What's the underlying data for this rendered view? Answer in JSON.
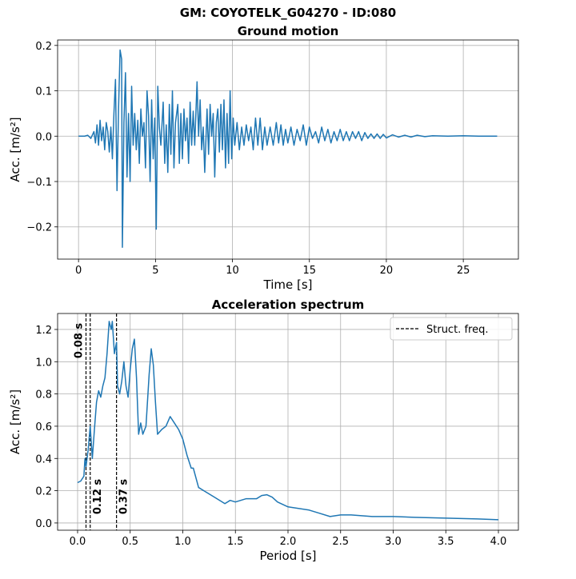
{
  "title": "GM: COYOTELK_G04270 - ID:080",
  "chart_data": [
    {
      "type": "line",
      "title": "Ground motion",
      "xlabel": "Time [s]",
      "ylabel": "Acc. [m/s²]",
      "color": "#1f77b4",
      "grid": true,
      "xlim": [
        -1.36,
        28.58
      ],
      "ylim": [
        -0.271,
        0.212
      ],
      "xticks": [
        0,
        5,
        10,
        15,
        20,
        25
      ],
      "yticks": [
        {
          "value": -0.2,
          "label": "−0.2"
        },
        {
          "value": -0.1,
          "label": "−0.1"
        },
        {
          "value": 0,
          "label": "0.0"
        },
        0.1,
        0.2
      ],
      "x": [
        0,
        0.4,
        0.6,
        0.8,
        1.0,
        1.1,
        1.2,
        1.3,
        1.4,
        1.5,
        1.6,
        1.7,
        1.8,
        1.9,
        2.0,
        2.1,
        2.2,
        2.3,
        2.4,
        2.5,
        2.6,
        2.7,
        2.8,
        2.85,
        2.95,
        3.05,
        3.15,
        3.25,
        3.35,
        3.45,
        3.55,
        3.65,
        3.75,
        3.85,
        3.95,
        4.05,
        4.15,
        4.25,
        4.35,
        4.45,
        4.55,
        4.65,
        4.75,
        4.85,
        4.95,
        5.05,
        5.15,
        5.25,
        5.35,
        5.5,
        5.6,
        5.7,
        5.8,
        5.9,
        6.0,
        6.1,
        6.2,
        6.3,
        6.45,
        6.55,
        6.65,
        6.75,
        6.85,
        6.95,
        7.05,
        7.15,
        7.25,
        7.35,
        7.45,
        7.55,
        7.7,
        7.8,
        7.9,
        8.0,
        8.1,
        8.2,
        8.35,
        8.45,
        8.55,
        8.65,
        8.75,
        8.85,
        8.95,
        9.05,
        9.15,
        9.25,
        9.35,
        9.45,
        9.55,
        9.65,
        9.75,
        9.85,
        9.95,
        10.05,
        10.15,
        10.3,
        10.45,
        10.6,
        10.75,
        10.9,
        11.05,
        11.2,
        11.35,
        11.5,
        11.65,
        11.8,
        11.95,
        12.1,
        12.25,
        12.45,
        12.65,
        12.85,
        13.0,
        13.15,
        13.3,
        13.45,
        13.6,
        13.8,
        14.0,
        14.2,
        14.4,
        14.6,
        14.8,
        15.0,
        15.2,
        15.4,
        15.6,
        15.8,
        16.0,
        16.2,
        16.4,
        16.6,
        16.8,
        17.0,
        17.2,
        17.4,
        17.6,
        17.8,
        18.0,
        18.2,
        18.4,
        18.6,
        18.8,
        19.0,
        19.2,
        19.4,
        19.6,
        19.8,
        20.0,
        20.4,
        20.8,
        21.2,
        21.6,
        22.0,
        22.5,
        23.0,
        24.0,
        25.0,
        26.0,
        27.2
      ],
      "values": [
        0,
        0,
        0.002,
        -0.005,
        0.01,
        -0.015,
        0.025,
        -0.02,
        0.035,
        -0.01,
        0.02,
        -0.03,
        0.03,
        0.01,
        -0.035,
        0.02,
        -0.05,
        0.05,
        0.125,
        -0.12,
        0.06,
        0.19,
        0.17,
        -0.245,
        0.03,
        0.14,
        -0.09,
        0.05,
        -0.1,
        0.11,
        -0.02,
        0.05,
        -0.03,
        0.035,
        -0.06,
        0.06,
        0.0,
        0.03,
        -0.07,
        0.1,
        0.045,
        -0.1,
        0.08,
        -0.05,
        0.04,
        -0.205,
        0.11,
        0.02,
        -0.02,
        0.075,
        -0.06,
        0.025,
        -0.08,
        0.07,
        -0.04,
        0.1,
        -0.07,
        0.03,
        0.07,
        -0.06,
        0.05,
        -0.05,
        0.06,
        -0.01,
        0.04,
        -0.06,
        0.075,
        -0.02,
        0.055,
        -0.02,
        0.12,
        0.0,
        0.08,
        -0.03,
        0.02,
        -0.08,
        0.06,
        -0.04,
        0.07,
        0.0,
        0.05,
        -0.09,
        0.03,
        0.06,
        -0.035,
        0.07,
        -0.03,
        0.08,
        -0.07,
        0.05,
        -0.06,
        0.1,
        -0.05,
        0.04,
        -0.02,
        0.03,
        -0.03,
        0.02,
        -0.02,
        0.025,
        -0.01,
        0.02,
        -0.03,
        0.04,
        -0.02,
        0.04,
        -0.03,
        0.02,
        -0.02,
        0.02,
        -0.02,
        0.03,
        -0.015,
        0.025,
        -0.02,
        0.015,
        -0.015,
        0.02,
        -0.02,
        0.015,
        -0.01,
        0.025,
        -0.02,
        0.02,
        -0.005,
        0.01,
        -0.015,
        0.02,
        -0.01,
        0.015,
        -0.015,
        0.01,
        -0.01,
        0.015,
        -0.01,
        0.01,
        -0.01,
        0.01,
        -0.005,
        0.01,
        -0.01,
        0.008,
        -0.005,
        0.005,
        -0.005,
        0.005,
        -0.005,
        0.004,
        -0.004,
        0.003,
        -0.002,
        0.002,
        -0.002,
        0.002,
        -0.001,
        0.001,
        0,
        0.001,
        0,
        0
      ]
    },
    {
      "type": "line",
      "title": "Acceleration spectrum",
      "xlabel": "Period [s]",
      "ylabel": "Acc. [m/s²]",
      "color": "#1f77b4",
      "grid": true,
      "xlim": [
        -0.19,
        4.19
      ],
      "ylim": [
        -0.045,
        1.299
      ],
      "xticks": [
        {
          "value": 0,
          "label": "0.0"
        },
        0.5,
        {
          "value": 1,
          "label": "1.0"
        },
        1.5,
        {
          "value": 2,
          "label": "2.0"
        },
        2.5,
        {
          "value": 3,
          "label": "3.0"
        },
        3.5,
        {
          "value": 4,
          "label": "4.0"
        }
      ],
      "yticks": [
        {
          "value": 0,
          "label": "0.0"
        },
        0.2,
        0.4,
        0.6,
        0.8,
        {
          "value": 1,
          "label": "1.0"
        },
        1.2
      ],
      "x": [
        0.0,
        0.03,
        0.06,
        0.07,
        0.08,
        0.1,
        0.12,
        0.14,
        0.16,
        0.18,
        0.2,
        0.22,
        0.24,
        0.26,
        0.28,
        0.3,
        0.32,
        0.33,
        0.35,
        0.37,
        0.38,
        0.4,
        0.42,
        0.44,
        0.46,
        0.48,
        0.5,
        0.52,
        0.54,
        0.56,
        0.58,
        0.6,
        0.62,
        0.65,
        0.68,
        0.7,
        0.72,
        0.74,
        0.76,
        0.8,
        0.84,
        0.88,
        0.92,
        0.96,
        1.0,
        1.04,
        1.08,
        1.1,
        1.15,
        1.2,
        1.3,
        1.4,
        1.45,
        1.5,
        1.6,
        1.7,
        1.75,
        1.8,
        1.85,
        1.9,
        2.0,
        2.2,
        2.3,
        2.4,
        2.5,
        2.6,
        2.8,
        3.0,
        3.2,
        3.5,
        3.8,
        4.0
      ],
      "values": [
        0.25,
        0.26,
        0.29,
        0.4,
        0.35,
        0.45,
        0.6,
        0.4,
        0.58,
        0.75,
        0.82,
        0.78,
        0.85,
        0.9,
        1.05,
        1.25,
        1.2,
        1.25,
        1.05,
        1.12,
        0.85,
        0.8,
        0.88,
        1.0,
        0.85,
        0.78,
        0.95,
        1.08,
        1.14,
        0.9,
        0.55,
        0.62,
        0.55,
        0.6,
        0.92,
        1.08,
        0.98,
        0.75,
        0.55,
        0.58,
        0.6,
        0.66,
        0.62,
        0.58,
        0.52,
        0.42,
        0.34,
        0.34,
        0.22,
        0.2,
        0.16,
        0.12,
        0.14,
        0.13,
        0.15,
        0.15,
        0.17,
        0.175,
        0.16,
        0.13,
        0.1,
        0.08,
        0.06,
        0.04,
        0.05,
        0.05,
        0.04,
        0.04,
        0.035,
        0.03,
        0.025,
        0.02
      ],
      "vlines": {
        "name": "Struct. freq.",
        "color": "#000000",
        "dashed": true,
        "lines": [
          {
            "value": 0.08,
            "label": "0.08 s"
          },
          {
            "value": 0.12,
            "label": "0.12 s"
          },
          {
            "value": 0.37,
            "label": "0.37 s"
          }
        ]
      },
      "legend": "upper right"
    }
  ]
}
